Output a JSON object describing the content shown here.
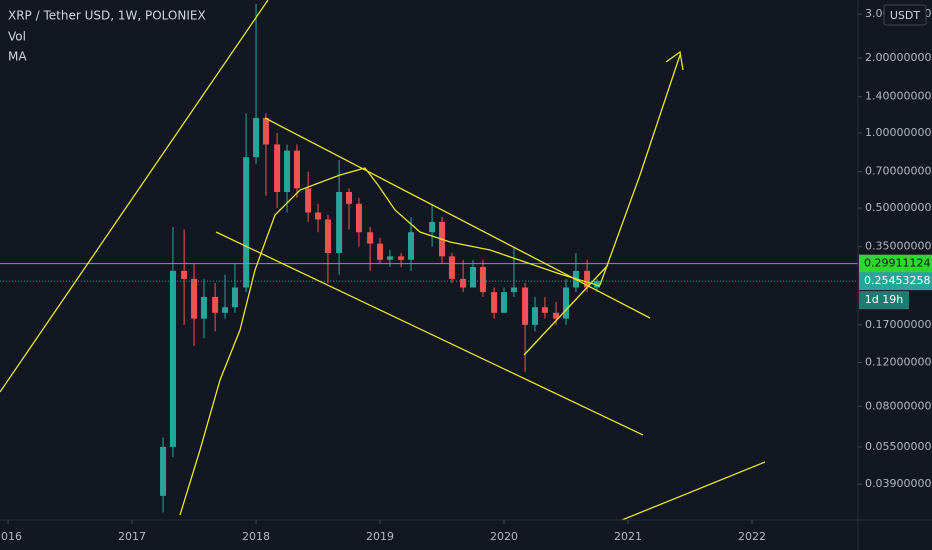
{
  "chart_data": {
    "type": "candlestick",
    "title": "XRP / Tether USD, 1W, POLONIEX",
    "indicators": [
      "Vol",
      "MA"
    ],
    "currency": "USDT",
    "log_scale": true,
    "grid": false,
    "up_color": "#26a69a",
    "down_color": "#ef5350",
    "xlim": [
      2015.935,
      2022.855
    ],
    "xticks": [
      2016,
      2017,
      2018,
      2019,
      2020,
      2021,
      2022
    ],
    "ylim": [
      0.028,
      3.42
    ],
    "yticks": [
      {
        "value": 3.0,
        "label": "3.00000000"
      },
      {
        "value": 2.0,
        "label": "2.00000000"
      },
      {
        "value": 1.4,
        "label": "1.40000000"
      },
      {
        "value": 1.0,
        "label": "1.00000000"
      },
      {
        "value": 0.7,
        "label": "0.70000000"
      },
      {
        "value": 0.5,
        "label": "0.50000000"
      },
      {
        "value": 0.35,
        "label": "0.35000000"
      },
      {
        "value": 0.17,
        "label": "0.17000000"
      },
      {
        "value": 0.12,
        "label": "0.12000000"
      },
      {
        "value": 0.08,
        "label": "0.08000000"
      },
      {
        "value": 0.055,
        "label": "0.05500000"
      },
      {
        "value": 0.039,
        "label": "0.03900000"
      }
    ],
    "x": [
      2017.25,
      2017.33,
      2017.42,
      2017.5,
      2017.58,
      2017.67,
      2017.75,
      2017.83,
      2017.92,
      2018.0,
      2018.08,
      2018.17,
      2018.25,
      2018.33,
      2018.42,
      2018.5,
      2018.58,
      2018.67,
      2018.75,
      2018.83,
      2018.92,
      2019.0,
      2019.08,
      2019.17,
      2019.25,
      2019.42,
      2019.5,
      2019.58,
      2019.67,
      2019.75,
      2019.83,
      2019.92,
      2020.0,
      2020.08,
      2020.17,
      2020.25,
      2020.33,
      2020.42,
      2020.5,
      2020.58,
      2020.67,
      2020.75
    ],
    "open": [
      0.035,
      0.055,
      0.28,
      0.26,
      0.18,
      0.22,
      0.19,
      0.2,
      0.24,
      0.8,
      1.15,
      0.9,
      0.58,
      0.85,
      0.6,
      0.48,
      0.45,
      0.33,
      0.58,
      0.52,
      0.4,
      0.36,
      0.31,
      0.32,
      0.31,
      0.4,
      0.44,
      0.32,
      0.26,
      0.24,
      0.29,
      0.23,
      0.19,
      0.23,
      0.24,
      0.17,
      0.2,
      0.19,
      0.18,
      0.24,
      0.28,
      0.24
    ],
    "high": [
      0.06,
      0.42,
      0.41,
      0.3,
      0.26,
      0.25,
      0.27,
      0.3,
      1.2,
      3.3,
      1.2,
      1.0,
      0.9,
      0.9,
      0.7,
      0.52,
      0.47,
      0.78,
      0.6,
      0.55,
      0.42,
      0.38,
      0.34,
      0.33,
      0.46,
      0.52,
      0.46,
      0.33,
      0.31,
      0.31,
      0.31,
      0.24,
      0.24,
      0.35,
      0.25,
      0.22,
      0.22,
      0.21,
      0.26,
      0.33,
      0.31,
      0.26
    ],
    "low": [
      0.03,
      0.05,
      0.17,
      0.14,
      0.15,
      0.16,
      0.18,
      0.19,
      0.23,
      0.75,
      0.56,
      0.5,
      0.48,
      0.55,
      0.44,
      0.4,
      0.25,
      0.27,
      0.41,
      0.35,
      0.28,
      0.3,
      0.29,
      0.29,
      0.28,
      0.35,
      0.3,
      0.25,
      0.23,
      0.24,
      0.22,
      0.18,
      0.19,
      0.22,
      0.11,
      0.16,
      0.18,
      0.17,
      0.17,
      0.23,
      0.23,
      0.23
    ],
    "close": [
      0.055,
      0.28,
      0.26,
      0.18,
      0.22,
      0.19,
      0.2,
      0.24,
      0.8,
      1.15,
      0.9,
      0.58,
      0.85,
      0.6,
      0.48,
      0.45,
      0.33,
      0.58,
      0.52,
      0.4,
      0.36,
      0.31,
      0.32,
      0.31,
      0.4,
      0.44,
      0.32,
      0.26,
      0.24,
      0.29,
      0.23,
      0.19,
      0.23,
      0.24,
      0.17,
      0.2,
      0.19,
      0.18,
      0.24,
      0.28,
      0.24,
      0.255
    ],
    "price_lines": [
      {
        "value": 0.29911124,
        "color": "#2fd62f",
        "text_color": "#131722",
        "style": "solid"
      },
      {
        "value": 0.25453258,
        "color": "#26a69a",
        "text_color": "#ffffff",
        "style": "dotted"
      }
    ],
    "countdown": "1d 19h"
  }
}
